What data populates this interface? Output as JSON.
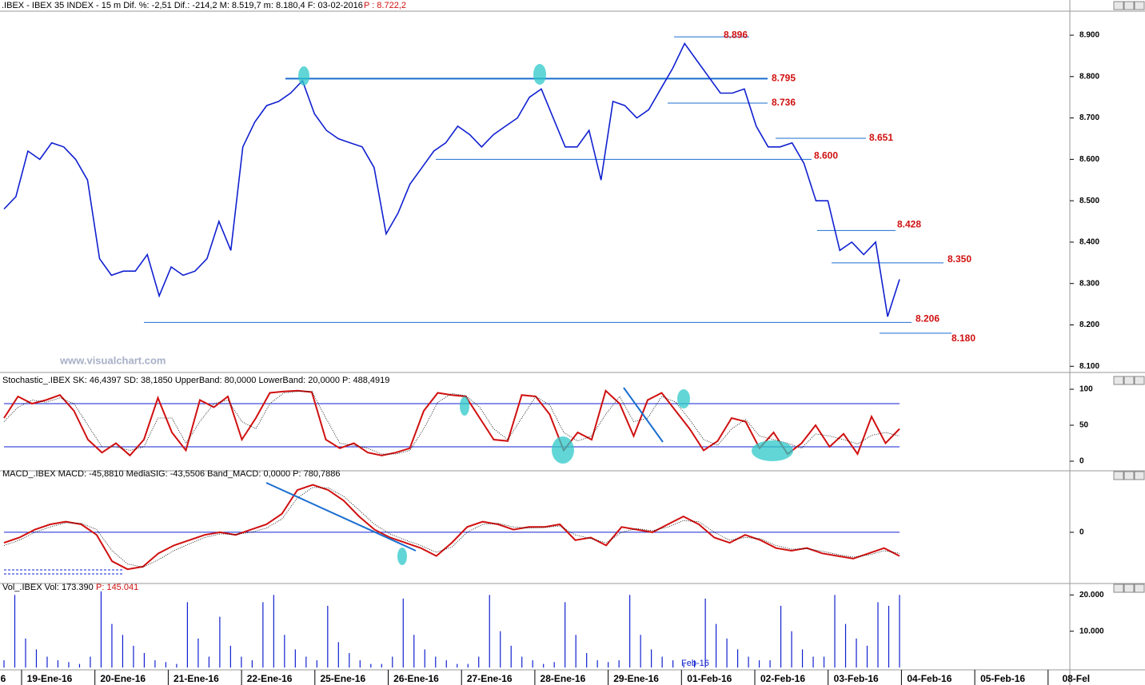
{
  "header": {
    "title": ".IBEX - IBEX 35 INDEX -  15 m  Dif. %: -2,51  Dif.: -214,2  M: 8.519,7  m: 8.180,4  F: 03-02-2016",
    "price": "P : 8.722,2"
  },
  "watermark": "www.visualchart.com",
  "month_marker": "Feb-16",
  "dates": [
    "6",
    "19-Ene-16",
    "20-Ene-16",
    "21-Ene-16",
    "22-Ene-16",
    "25-Ene-16",
    "26-Ene-16",
    "27-Ene-16",
    "28-Ene-16",
    "29-Ene-16",
    "01-Feb-16",
    "02-Feb-16",
    "03-Feb-16",
    "04-Feb-16",
    "05-Feb-16",
    "08-Fel"
  ],
  "chart_data": [
    {
      "type": "line",
      "series": [
        {
          "color": "#1020d0",
          "values": [
            8.48,
            8.51,
            8.62,
            8.6,
            8.64,
            8.63,
            8.6,
            8.55,
            8.36,
            8.32,
            8.33,
            8.33,
            8.37,
            8.27,
            8.34,
            8.32,
            8.33,
            8.36,
            8.45,
            8.38,
            8.63,
            8.69,
            8.73,
            8.74,
            8.76,
            8.79,
            8.71,
            8.67,
            8.65,
            8.64,
            8.63,
            8.58,
            8.42,
            8.47,
            8.54,
            8.58,
            8.62,
            8.64,
            8.68,
            8.66,
            8.63,
            8.66,
            8.68,
            8.7,
            8.75,
            8.77,
            8.7,
            8.63,
            8.63,
            8.67,
            8.55,
            8.74,
            8.73,
            8.7,
            8.72,
            8.77,
            8.82,
            8.88,
            8.84,
            8.8,
            8.76,
            8.76,
            8.77,
            8.68,
            8.63,
            8.63,
            8.64,
            8.59,
            8.5,
            8.5,
            8.38,
            8.4,
            8.37,
            8.4,
            8.22,
            8.31
          ]
        }
      ],
      "levels": [
        {
          "value": 8.896,
          "label": "8.896"
        },
        {
          "value": 8.795,
          "label": "8.795"
        },
        {
          "value": 8.736,
          "label": "8.736"
        },
        {
          "value": 8.651,
          "label": "8.651"
        },
        {
          "value": 8.6,
          "label": "8.600"
        },
        {
          "value": 8.428,
          "label": "8.428"
        },
        {
          "value": 8.35,
          "label": "8.350"
        },
        {
          "value": 8.206,
          "label": "8.206"
        },
        {
          "value": 8.18,
          "label": "8.180"
        }
      ],
      "ylim": [
        8.087,
        8.958
      ],
      "yticks": [
        {
          "value": 8.9,
          "label": "8.900"
        },
        {
          "value": 8.8,
          "label": "8.800"
        },
        {
          "value": 8.7,
          "label": "8.700"
        },
        {
          "value": 8.6,
          "label": "8.600"
        },
        {
          "value": 8.5,
          "label": "8.500"
        },
        {
          "value": 8.4,
          "label": "8.400"
        },
        {
          "value": 8.3,
          "label": "8.300"
        },
        {
          "value": 8.2,
          "label": "8.200"
        },
        {
          "value": 8.1,
          "label": "8.100"
        }
      ]
    },
    {
      "type": "line",
      "title": "Stochastic_.IBEX SK: 46,4397  SD: 38,1850  UpperBand: 80,0000  LowerBand: 20,0000  P: 488,4919",
      "series": [
        {
          "color": "#d01010",
          "values": [
            60,
            90,
            80,
            85,
            92,
            70,
            30,
            12,
            25,
            8,
            30,
            88,
            40,
            15,
            85,
            75,
            90,
            30,
            60,
            95,
            97,
            98,
            96,
            30,
            18,
            25,
            12,
            8,
            12,
            18,
            70,
            95,
            92,
            90,
            60,
            30,
            28,
            92,
            90,
            65,
            15,
            40,
            30,
            98,
            80,
            35,
            85,
            95,
            70,
            45,
            15,
            28,
            60,
            55,
            18,
            40,
            10,
            25,
            50,
            20,
            38,
            10,
            62,
            25,
            45
          ]
        },
        {
          "color": "#000000",
          "values": [
            55,
            75,
            85,
            82,
            88,
            80,
            50,
            20,
            20,
            15,
            20,
            60,
            60,
            25,
            55,
            80,
            85,
            55,
            45,
            80,
            95,
            97,
            97,
            60,
            25,
            22,
            18,
            10,
            10,
            15,
            45,
            82,
            94,
            91,
            75,
            45,
            30,
            60,
            90,
            78,
            40,
            28,
            35,
            65,
            90,
            55,
            60,
            90,
            82,
            58,
            30,
            22,
            45,
            58,
            35,
            30,
            25,
            18,
            38,
            35,
            30,
            24,
            36,
            40,
            35
          ]
        }
      ],
      "bands": [
        80,
        20
      ],
      "ylim": [
        -12.2,
        121.1
      ],
      "yticks": [
        100,
        50,
        0
      ]
    },
    {
      "type": "line",
      "title": "MACD_.IBEX MACD: -45,8810  MediaSIG: -43,5506  Band_MACD: 0,0000  P: 780,7886",
      "series": [
        {
          "color": "#d01010",
          "values": [
            -20,
            -10,
            5,
            15,
            20,
            15,
            -5,
            -55,
            -70,
            -65,
            -40,
            -25,
            -15,
            -5,
            0,
            -5,
            5,
            15,
            35,
            80,
            90,
            80,
            60,
            30,
            5,
            -10,
            -20,
            -30,
            -45,
            -20,
            10,
            20,
            15,
            5,
            10,
            10,
            15,
            -15,
            -10,
            -25,
            10,
            5,
            0,
            15,
            30,
            15,
            -10,
            -20,
            -5,
            -15,
            -30,
            -35,
            -30,
            -40,
            -45,
            -50,
            -40,
            -30,
            -45
          ]
        },
        {
          "color": "#000000",
          "values": [
            -25,
            -15,
            0,
            10,
            18,
            17,
            5,
            -35,
            -60,
            -66,
            -52,
            -35,
            -22,
            -10,
            -3,
            -4,
            0,
            8,
            25,
            65,
            85,
            84,
            68,
            42,
            15,
            -3,
            -15,
            -25,
            -38,
            -28,
            0,
            15,
            17,
            10,
            8,
            9,
            12,
            -5,
            -12,
            -20,
            0,
            7,
            3,
            10,
            22,
            20,
            0,
            -15,
            -10,
            -12,
            -25,
            -32,
            -31,
            -36,
            -42,
            -47,
            -43,
            -35,
            -40
          ]
        }
      ],
      "bands": [
        0
      ],
      "ylim": [
        -94,
        115
      ],
      "yticks": [
        0
      ]
    },
    {
      "type": "bar",
      "title": "Vol_.IBEX Vol: 173.390",
      "subtitle": "P: 145.041",
      "color": "#1020d0",
      "values": [
        2000,
        20000,
        8000,
        5000,
        3000,
        2000,
        1500,
        1000,
        3000,
        21000,
        12000,
        9000,
        6000,
        4000,
        2000,
        1500,
        1000,
        18000,
        8000,
        3000,
        14000,
        6000,
        3000,
        2000,
        18000,
        20000,
        9000,
        5000,
        3000,
        2000,
        17000,
        7000,
        4000,
        2000,
        1000,
        1000,
        3000,
        19000,
        9000,
        5000,
        3000,
        2000,
        1000,
        1000,
        3000,
        20000,
        10000,
        6000,
        3000,
        2000,
        1000,
        1500,
        18000,
        9000,
        4000,
        2000,
        1500,
        2000,
        20000,
        9000,
        5000,
        3000,
        2000,
        1000,
        2000,
        19000,
        12000,
        8000,
        5000,
        3000,
        2000,
        2000,
        17000,
        10000,
        5000,
        3000,
        3000,
        20000,
        12000,
        8000,
        6000,
        18000,
        17000,
        20000
      ],
      "ylim": [
        -625,
        22708
      ],
      "yticks": [
        {
          "value": 20000,
          "label": "20.000"
        },
        {
          "value": 10000,
          "label": "10.000"
        }
      ]
    }
  ]
}
